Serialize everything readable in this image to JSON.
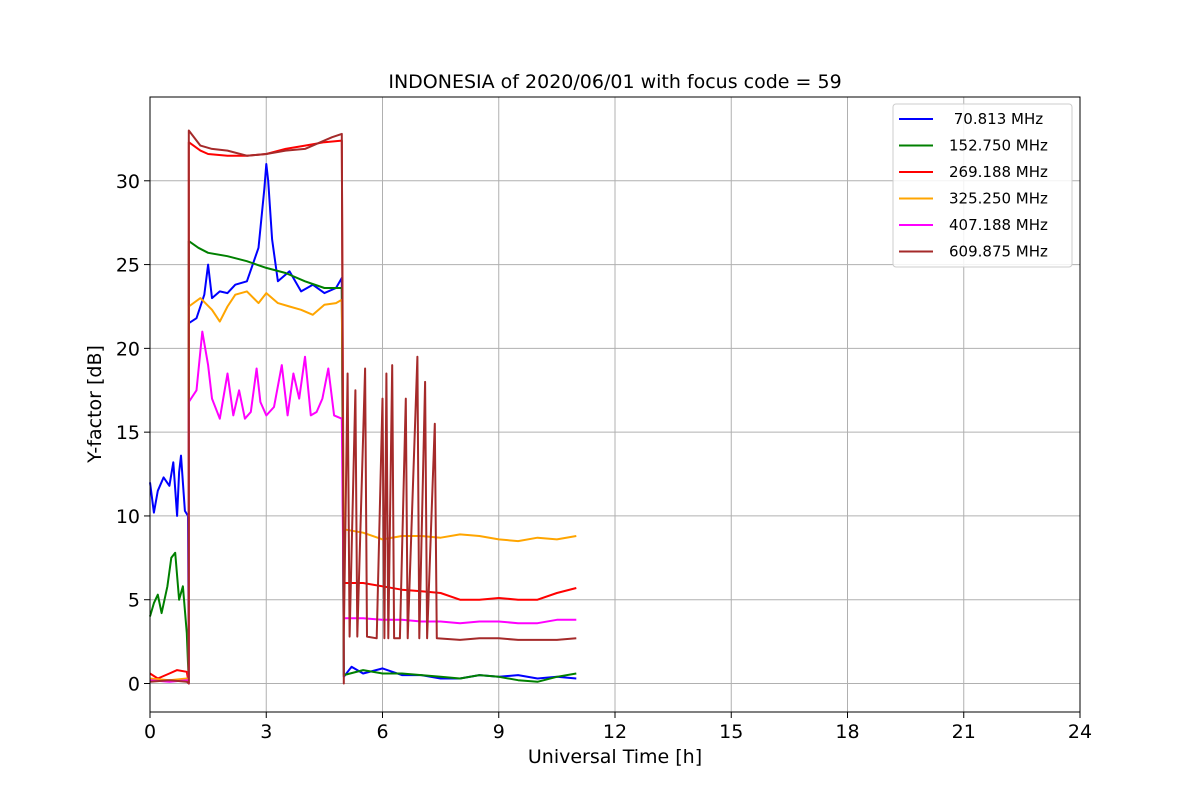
{
  "chart_data": {
    "type": "line",
    "title": "INDONESIA of 2020/06/01 with focus code = 59",
    "xlabel": "Universal Time [h]",
    "ylabel": "Y-factor [dB]",
    "xlim": [
      0,
      24
    ],
    "ylim": [
      -1.7,
      35
    ],
    "xticks": [
      0,
      3,
      6,
      9,
      12,
      15,
      18,
      21,
      24
    ],
    "yticks": [
      0,
      5,
      10,
      15,
      20,
      25,
      30
    ],
    "grid": true,
    "legend_position": "top-right",
    "series": [
      {
        "name": " 70.813 MHz",
        "color": "#0000ff",
        "points": [
          [
            0,
            12.0
          ],
          [
            0.1,
            10.2
          ],
          [
            0.2,
            11.5
          ],
          [
            0.35,
            12.3
          ],
          [
            0.5,
            11.8
          ],
          [
            0.6,
            13.2
          ],
          [
            0.7,
            10.0
          ],
          [
            0.75,
            12.6
          ],
          [
            0.8,
            13.6
          ],
          [
            0.9,
            10.3
          ],
          [
            0.98,
            10.0
          ],
          [
            1.0,
            0
          ],
          [
            1.0,
            21.5
          ],
          [
            1.2,
            21.8
          ],
          [
            1.4,
            23.2
          ],
          [
            1.5,
            25.0
          ],
          [
            1.6,
            23.0
          ],
          [
            1.8,
            23.4
          ],
          [
            2.0,
            23.3
          ],
          [
            2.2,
            23.8
          ],
          [
            2.5,
            24.0
          ],
          [
            2.8,
            26.0
          ],
          [
            2.95,
            29.5
          ],
          [
            3.0,
            31.0
          ],
          [
            3.05,
            30.0
          ],
          [
            3.15,
            26.5
          ],
          [
            3.3,
            24.0
          ],
          [
            3.6,
            24.6
          ],
          [
            3.9,
            23.4
          ],
          [
            4.2,
            23.8
          ],
          [
            4.5,
            23.3
          ],
          [
            4.8,
            23.6
          ],
          [
            4.95,
            24.2
          ],
          [
            5.0,
            0.4
          ],
          [
            5.2,
            1.0
          ],
          [
            5.5,
            0.6
          ],
          [
            6.0,
            0.9
          ],
          [
            6.5,
            0.5
          ],
          [
            7.0,
            0.5
          ],
          [
            7.5,
            0.3
          ],
          [
            8.0,
            0.3
          ],
          [
            8.5,
            0.5
          ],
          [
            9.0,
            0.4
          ],
          [
            9.5,
            0.5
          ],
          [
            10.0,
            0.3
          ],
          [
            10.5,
            0.4
          ],
          [
            11.0,
            0.3
          ]
        ]
      },
      {
        "name": "152.750 MHz",
        "color": "#008000",
        "points": [
          [
            0,
            4.0
          ],
          [
            0.1,
            4.8
          ],
          [
            0.2,
            5.3
          ],
          [
            0.3,
            4.2
          ],
          [
            0.45,
            5.8
          ],
          [
            0.55,
            7.5
          ],
          [
            0.65,
            7.8
          ],
          [
            0.75,
            5.0
          ],
          [
            0.85,
            5.8
          ],
          [
            0.95,
            3.0
          ],
          [
            1.0,
            0
          ],
          [
            1.0,
            26.4
          ],
          [
            1.25,
            26.0
          ],
          [
            1.5,
            25.7
          ],
          [
            2.0,
            25.5
          ],
          [
            2.5,
            25.2
          ],
          [
            3.0,
            24.8
          ],
          [
            3.5,
            24.5
          ],
          [
            4.0,
            24.0
          ],
          [
            4.5,
            23.6
          ],
          [
            4.95,
            23.6
          ],
          [
            5.0,
            0.5
          ],
          [
            5.5,
            0.8
          ],
          [
            6.0,
            0.6
          ],
          [
            6.5,
            0.6
          ],
          [
            7.0,
            0.5
          ],
          [
            7.5,
            0.4
          ],
          [
            8.0,
            0.3
          ],
          [
            8.5,
            0.5
          ],
          [
            9.0,
            0.4
          ],
          [
            9.5,
            0.2
          ],
          [
            10.0,
            0.1
          ],
          [
            10.5,
            0.4
          ],
          [
            11.0,
            0.6
          ]
        ]
      },
      {
        "name": "269.188 MHz",
        "color": "#ff0000",
        "points": [
          [
            0,
            0.6
          ],
          [
            0.2,
            0.3
          ],
          [
            0.5,
            0.6
          ],
          [
            0.7,
            0.8
          ],
          [
            0.95,
            0.7
          ],
          [
            1.0,
            0
          ],
          [
            1.0,
            32.3
          ],
          [
            1.3,
            31.8
          ],
          [
            1.5,
            31.6
          ],
          [
            2.0,
            31.5
          ],
          [
            2.5,
            31.5
          ],
          [
            3.0,
            31.6
          ],
          [
            3.5,
            31.9
          ],
          [
            4.0,
            32.1
          ],
          [
            4.5,
            32.3
          ],
          [
            4.95,
            32.4
          ],
          [
            5.0,
            6.0
          ],
          [
            5.5,
            6.0
          ],
          [
            6.0,
            5.8
          ],
          [
            6.5,
            5.6
          ],
          [
            7.0,
            5.5
          ],
          [
            7.5,
            5.4
          ],
          [
            8.0,
            5.0
          ],
          [
            8.5,
            5.0
          ],
          [
            9.0,
            5.1
          ],
          [
            9.5,
            5.0
          ],
          [
            10.0,
            5.0
          ],
          [
            10.5,
            5.4
          ],
          [
            11.0,
            5.7
          ]
        ]
      },
      {
        "name": "325.250 MHz",
        "color": "#ffa500",
        "points": [
          [
            0,
            0.3
          ],
          [
            0.5,
            0.2
          ],
          [
            0.95,
            0.3
          ],
          [
            1.0,
            0
          ],
          [
            1.0,
            22.5
          ],
          [
            1.3,
            23.0
          ],
          [
            1.6,
            22.3
          ],
          [
            1.8,
            21.6
          ],
          [
            2.0,
            22.5
          ],
          [
            2.2,
            23.2
          ],
          [
            2.5,
            23.4
          ],
          [
            2.8,
            22.7
          ],
          [
            3.0,
            23.3
          ],
          [
            3.3,
            22.7
          ],
          [
            3.6,
            22.5
          ],
          [
            3.9,
            22.3
          ],
          [
            4.2,
            22.0
          ],
          [
            4.5,
            22.6
          ],
          [
            4.8,
            22.7
          ],
          [
            4.95,
            22.9
          ],
          [
            5.0,
            9.2
          ],
          [
            5.5,
            9.0
          ],
          [
            6.0,
            8.6
          ],
          [
            6.5,
            8.8
          ],
          [
            7.0,
            8.8
          ],
          [
            7.5,
            8.7
          ],
          [
            8.0,
            8.9
          ],
          [
            8.5,
            8.8
          ],
          [
            9.0,
            8.6
          ],
          [
            9.5,
            8.5
          ],
          [
            10.0,
            8.7
          ],
          [
            10.5,
            8.6
          ],
          [
            11.0,
            8.8
          ]
        ]
      },
      {
        "name": "407.188 MHz",
        "color": "#ff00ff",
        "points": [
          [
            0,
            0.2
          ],
          [
            0.5,
            0.1
          ],
          [
            0.95,
            0.2
          ],
          [
            1.0,
            0
          ],
          [
            1.0,
            16.8
          ],
          [
            1.2,
            17.5
          ],
          [
            1.35,
            21.0
          ],
          [
            1.5,
            19.0
          ],
          [
            1.6,
            17.0
          ],
          [
            1.8,
            15.8
          ],
          [
            2.0,
            18.5
          ],
          [
            2.15,
            16.0
          ],
          [
            2.3,
            17.5
          ],
          [
            2.45,
            15.8
          ],
          [
            2.6,
            16.2
          ],
          [
            2.75,
            18.8
          ],
          [
            2.85,
            16.8
          ],
          [
            3.0,
            16.0
          ],
          [
            3.2,
            16.5
          ],
          [
            3.4,
            19.0
          ],
          [
            3.55,
            16.0
          ],
          [
            3.7,
            18.5
          ],
          [
            3.85,
            17.0
          ],
          [
            4.0,
            19.5
          ],
          [
            4.15,
            16.0
          ],
          [
            4.3,
            16.2
          ],
          [
            4.45,
            17.0
          ],
          [
            4.6,
            18.8
          ],
          [
            4.75,
            16.0
          ],
          [
            4.95,
            15.8
          ],
          [
            5.0,
            3.9
          ],
          [
            5.5,
            3.9
          ],
          [
            6.0,
            3.8
          ],
          [
            6.5,
            3.8
          ],
          [
            7.0,
            3.7
          ],
          [
            7.5,
            3.7
          ],
          [
            8.0,
            3.6
          ],
          [
            8.5,
            3.7
          ],
          [
            9.0,
            3.7
          ],
          [
            9.5,
            3.6
          ],
          [
            10.0,
            3.6
          ],
          [
            10.5,
            3.8
          ],
          [
            11.0,
            3.8
          ]
        ]
      },
      {
        "name": "609.875 MHz",
        "color": "#a52a2a",
        "points": [
          [
            0,
            0.1
          ],
          [
            0.5,
            0.2
          ],
          [
            0.95,
            0.1
          ],
          [
            1.0,
            0
          ],
          [
            1.0,
            33.0
          ],
          [
            1.3,
            32.1
          ],
          [
            1.6,
            31.9
          ],
          [
            2.0,
            31.8
          ],
          [
            2.5,
            31.5
          ],
          [
            3.0,
            31.6
          ],
          [
            3.5,
            31.8
          ],
          [
            4.0,
            31.9
          ],
          [
            4.4,
            32.3
          ],
          [
            4.7,
            32.6
          ],
          [
            4.95,
            32.8
          ],
          [
            5.0,
            0
          ],
          [
            5.0,
            2.8
          ],
          [
            5.1,
            18.5
          ],
          [
            5.15,
            2.8
          ],
          [
            5.3,
            17.5
          ],
          [
            5.35,
            2.8
          ],
          [
            5.55,
            18.8
          ],
          [
            5.6,
            2.8
          ],
          [
            5.85,
            2.7
          ],
          [
            6.0,
            17.0
          ],
          [
            6.05,
            2.7
          ],
          [
            6.1,
            18.5
          ],
          [
            6.15,
            2.7
          ],
          [
            6.25,
            19.0
          ],
          [
            6.3,
            2.7
          ],
          [
            6.45,
            2.7
          ],
          [
            6.6,
            17.0
          ],
          [
            6.65,
            2.7
          ],
          [
            6.9,
            19.5
          ],
          [
            6.95,
            2.7
          ],
          [
            7.1,
            18.0
          ],
          [
            7.15,
            2.7
          ],
          [
            7.35,
            15.5
          ],
          [
            7.4,
            2.7
          ],
          [
            8.0,
            2.6
          ],
          [
            8.5,
            2.7
          ],
          [
            9.0,
            2.7
          ],
          [
            9.5,
            2.6
          ],
          [
            10.0,
            2.6
          ],
          [
            10.5,
            2.6
          ],
          [
            11.0,
            2.7
          ]
        ]
      }
    ]
  }
}
